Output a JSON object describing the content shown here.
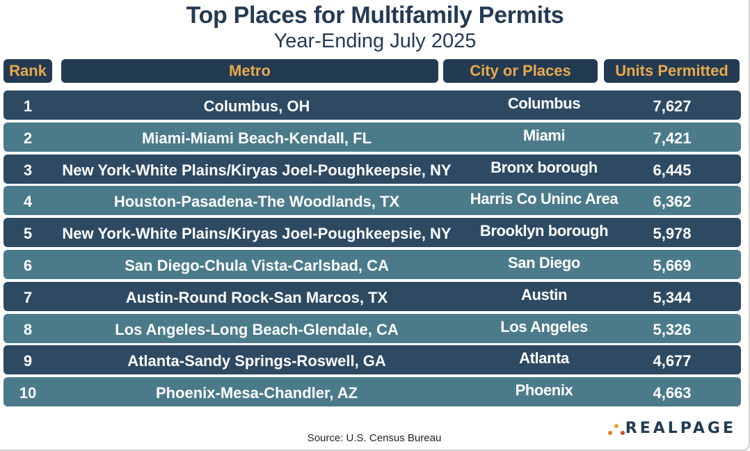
{
  "title": "Top Places for Multifamily Permits",
  "subtitle": "Year-Ending July 2025",
  "headers": {
    "rank": "Rank",
    "metro": "Metro",
    "city": "City or Places",
    "units": "Units Permitted"
  },
  "rows": [
    {
      "rank": "1",
      "metro": "Columbus, OH",
      "city": "Columbus",
      "units": "7,627"
    },
    {
      "rank": "2",
      "metro": "Miami-Miami Beach-Kendall, FL",
      "city": "Miami",
      "units": "7,421"
    },
    {
      "rank": "3",
      "metro": "New York-White Plains/Kiryas Joel-Poughkeepsie, NY",
      "city": "Bronx borough",
      "units": "6,445"
    },
    {
      "rank": "4",
      "metro": "Houston-Pasadena-The Woodlands, TX",
      "city": "Harris Co Uninc Area",
      "units": "6,362"
    },
    {
      "rank": "5",
      "metro": "New York-White Plains/Kiryas Joel-Poughkeepsie, NY",
      "city": "Brooklyn borough",
      "units": "5,978"
    },
    {
      "rank": "6",
      "metro": "San Diego-Chula Vista-Carlsbad, CA",
      "city": "San Diego",
      "units": "5,669"
    },
    {
      "rank": "7",
      "metro": "Austin-Round Rock-San Marcos, TX",
      "city": "Austin",
      "units": "5,344"
    },
    {
      "rank": "8",
      "metro": "Los Angeles-Long Beach-Glendale, CA",
      "city": "Los Angeles",
      "units": "5,326"
    },
    {
      "rank": "9",
      "metro": "Atlanta-Sandy Springs-Roswell, GA",
      "city": "Atlanta",
      "units": "4,677"
    },
    {
      "rank": "10",
      "metro": "Phoenix-Mesa-Chandler, AZ",
      "city": "Phoenix",
      "units": "4,663"
    }
  ],
  "source": "Source: U.S. Census Bureau",
  "logo": {
    "text": "REALPAGE",
    "icon": "realpage-dots-icon"
  },
  "colors": {
    "navy": "#233a53",
    "row_dark": "#2e4a63",
    "row_light": "#4b7b8b",
    "header_text": "#e8a94c"
  }
}
